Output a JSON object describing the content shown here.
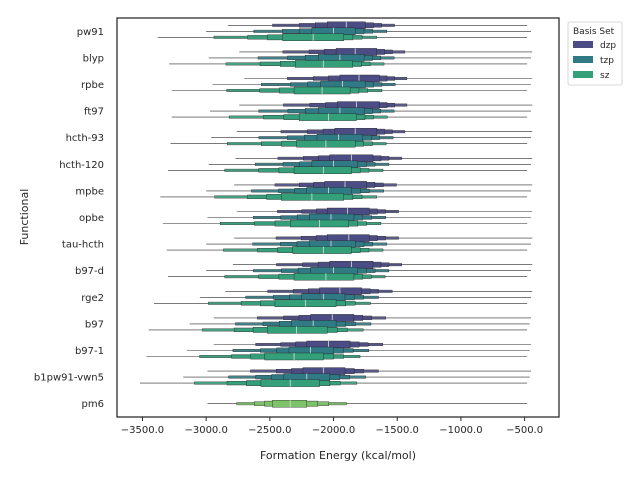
{
  "chart_data": {
    "type": "boxenplot",
    "orientation": "horizontal",
    "xlabel": "Formation Energy (kcal/mol)",
    "ylabel": "Functional",
    "xlim": [
      -3700,
      -230
    ],
    "xticks": [
      -3500,
      -3000,
      -2500,
      -2000,
      -1500,
      -1000,
      -500
    ],
    "xtick_labels": [
      "−3500.0",
      "−3000.0",
      "−2500.0",
      "−2000.0",
      "−1500.0",
      "−1000.0",
      "−500.0"
    ],
    "categories": [
      "pw91",
      "blyp",
      "rpbe",
      "ft97",
      "hcth-93",
      "hcth-120",
      "mpbe",
      "opbe",
      "tau-hcth",
      "b97-d",
      "rge2",
      "b97",
      "b97-1",
      "b1pw91-vwn5",
      "pm6"
    ],
    "legend": {
      "title": "Basis Set",
      "position": "top-right",
      "entries": [
        {
          "label": "dzp",
          "color": "#4c4c84"
        },
        {
          "label": "tzp",
          "color": "#2f7a85"
        },
        {
          "label": "sz",
          "color": "#33a07a"
        }
      ]
    },
    "series": [
      {
        "name": "dzp",
        "color": "#4c4c84",
        "stats": [
          {
            "min": -2830,
            "q1": -2050,
            "median": -1900,
            "q3": -1750,
            "max": -480
          },
          {
            "min": -2740,
            "q1": -1980,
            "median": -1830,
            "q3": -1660,
            "max": -440
          },
          {
            "min": -2700,
            "q1": -1950,
            "median": -1800,
            "q3": -1640,
            "max": -440
          },
          {
            "min": -2740,
            "q1": -1970,
            "median": -1820,
            "q3": -1640,
            "max": -440
          },
          {
            "min": -2760,
            "q1": -1990,
            "median": -1830,
            "q3": -1660,
            "max": -440
          },
          {
            "min": -2770,
            "q1": -2030,
            "median": -1860,
            "q3": -1690,
            "max": -440
          },
          {
            "min": -2780,
            "q1": -2070,
            "median": -1910,
            "q3": -1740,
            "max": -440
          },
          {
            "min": -2760,
            "q1": -2050,
            "median": -1890,
            "q3": -1720,
            "max": -440
          },
          {
            "min": -2780,
            "q1": -2050,
            "median": -1880,
            "q3": -1720,
            "max": -440
          },
          {
            "min": -2790,
            "q1": -2030,
            "median": -1860,
            "q3": -1690,
            "max": -440
          },
          {
            "min": -2850,
            "q1": -2110,
            "median": -1950,
            "q3": -1780,
            "max": -440
          },
          {
            "min": -2940,
            "q1": -2180,
            "median": -2010,
            "q3": -1840,
            "max": -450
          },
          {
            "min": -2940,
            "q1": -2210,
            "median": -2040,
            "q3": -1870,
            "max": -450
          },
          {
            "min": -2990,
            "q1": -2240,
            "median": -2080,
            "q3": -1910,
            "max": -450
          }
        ]
      },
      {
        "name": "tzp",
        "color": "#2f7a85",
        "stats": [
          {
            "min": -3000,
            "q1": -2170,
            "median": -2000,
            "q3": -1830,
            "max": -450
          },
          {
            "min": -2980,
            "q1": -2120,
            "median": -1950,
            "q3": -1760,
            "max": -450
          },
          {
            "min": -2950,
            "q1": -2100,
            "median": -1930,
            "q3": -1750,
            "max": -450
          },
          {
            "min": -2970,
            "q1": -2120,
            "median": -1950,
            "q3": -1760,
            "max": -450
          },
          {
            "min": -2960,
            "q1": -2130,
            "median": -1960,
            "q3": -1770,
            "max": -450
          },
          {
            "min": -2980,
            "q1": -2170,
            "median": -2000,
            "q3": -1810,
            "max": -450
          },
          {
            "min": -3000,
            "q1": -2210,
            "median": -2040,
            "q3": -1860,
            "max": -450
          },
          {
            "min": -2990,
            "q1": -2190,
            "median": -2020,
            "q3": -1840,
            "max": -450
          },
          {
            "min": -3000,
            "q1": -2190,
            "median": -2020,
            "q3": -1830,
            "max": -450
          },
          {
            "min": -3000,
            "q1": -2180,
            "median": -2000,
            "q3": -1810,
            "max": -450
          },
          {
            "min": -3050,
            "q1": -2250,
            "median": -2080,
            "q3": -1910,
            "max": -450
          },
          {
            "min": -3130,
            "q1": -2330,
            "median": -2160,
            "q3": -1980,
            "max": -460
          },
          {
            "min": -3150,
            "q1": -2350,
            "median": -2180,
            "q3": -2000,
            "max": -460
          },
          {
            "min": -3180,
            "q1": -2390,
            "median": -2210,
            "q3": -2030,
            "max": -460
          }
        ]
      },
      {
        "name": "sz",
        "color": "#33a07a",
        "stats": [
          {
            "min": -3380,
            "q1": -2400,
            "median": -2160,
            "q3": -1920,
            "max": -480
          },
          {
            "min": -3290,
            "q1": -2300,
            "median": -2080,
            "q3": -1850,
            "max": -480
          },
          {
            "min": -3270,
            "q1": -2310,
            "median": -2090,
            "q3": -1870,
            "max": -480
          },
          {
            "min": -3270,
            "q1": -2270,
            "median": -2040,
            "q3": -1820,
            "max": -480
          },
          {
            "min": -3280,
            "q1": -2290,
            "median": -2060,
            "q3": -1830,
            "max": -480
          },
          {
            "min": -3300,
            "q1": -2310,
            "median": -2080,
            "q3": -1860,
            "max": -480
          },
          {
            "min": -3360,
            "q1": -2410,
            "median": -2170,
            "q3": -1920,
            "max": -480
          },
          {
            "min": -3340,
            "q1": -2340,
            "median": -2110,
            "q3": -1880,
            "max": -480
          },
          {
            "min": -3310,
            "q1": -2320,
            "median": -2080,
            "q3": -1860,
            "max": -480
          },
          {
            "min": -3300,
            "q1": -2310,
            "median": -2060,
            "q3": -1840,
            "max": -480
          },
          {
            "min": -3410,
            "q1": -2460,
            "median": -2220,
            "q3": -1980,
            "max": -480
          },
          {
            "min": -3450,
            "q1": -2520,
            "median": -2290,
            "q3": -2050,
            "max": -480
          },
          {
            "min": -3470,
            "q1": -2540,
            "median": -2310,
            "q3": -2080,
            "max": -480
          },
          {
            "min": -3520,
            "q1": -2570,
            "median": -2340,
            "q3": -2110,
            "max": -480
          }
        ]
      },
      {
        "name": "pm6",
        "color": "#7cc369",
        "stats": [
          null,
          null,
          null,
          null,
          null,
          null,
          null,
          null,
          null,
          null,
          null,
          null,
          null,
          null,
          {
            "min": -2990,
            "q1": -2480,
            "median": -2340,
            "q3": -2210,
            "max": -480
          }
        ]
      }
    ]
  }
}
